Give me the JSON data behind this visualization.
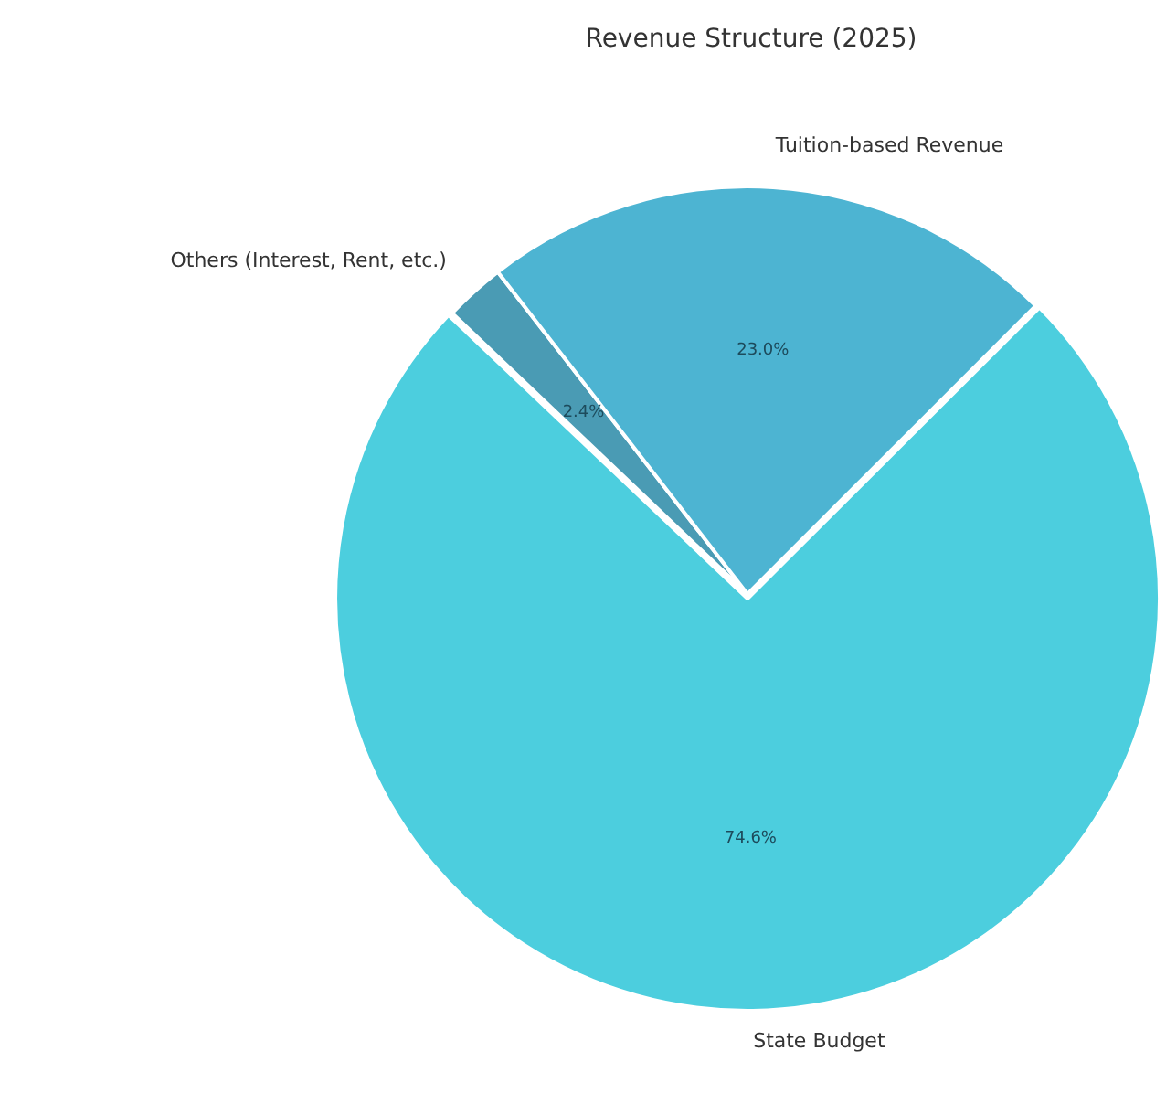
{
  "chart_data": {
    "type": "pie",
    "title": "Revenue Structure (2025)",
    "categories": [
      "State Budget",
      "Others (Interest, Rent, etc.)",
      "Tuition-based Revenue"
    ],
    "values": [
      74.6,
      2.4,
      23.0
    ],
    "colors": [
      "#4ccede",
      "#4a9bb4",
      "#4db4d2"
    ],
    "value_labels": [
      "74.6%",
      "2.4%",
      "23.0%"
    ],
    "legend": false
  }
}
